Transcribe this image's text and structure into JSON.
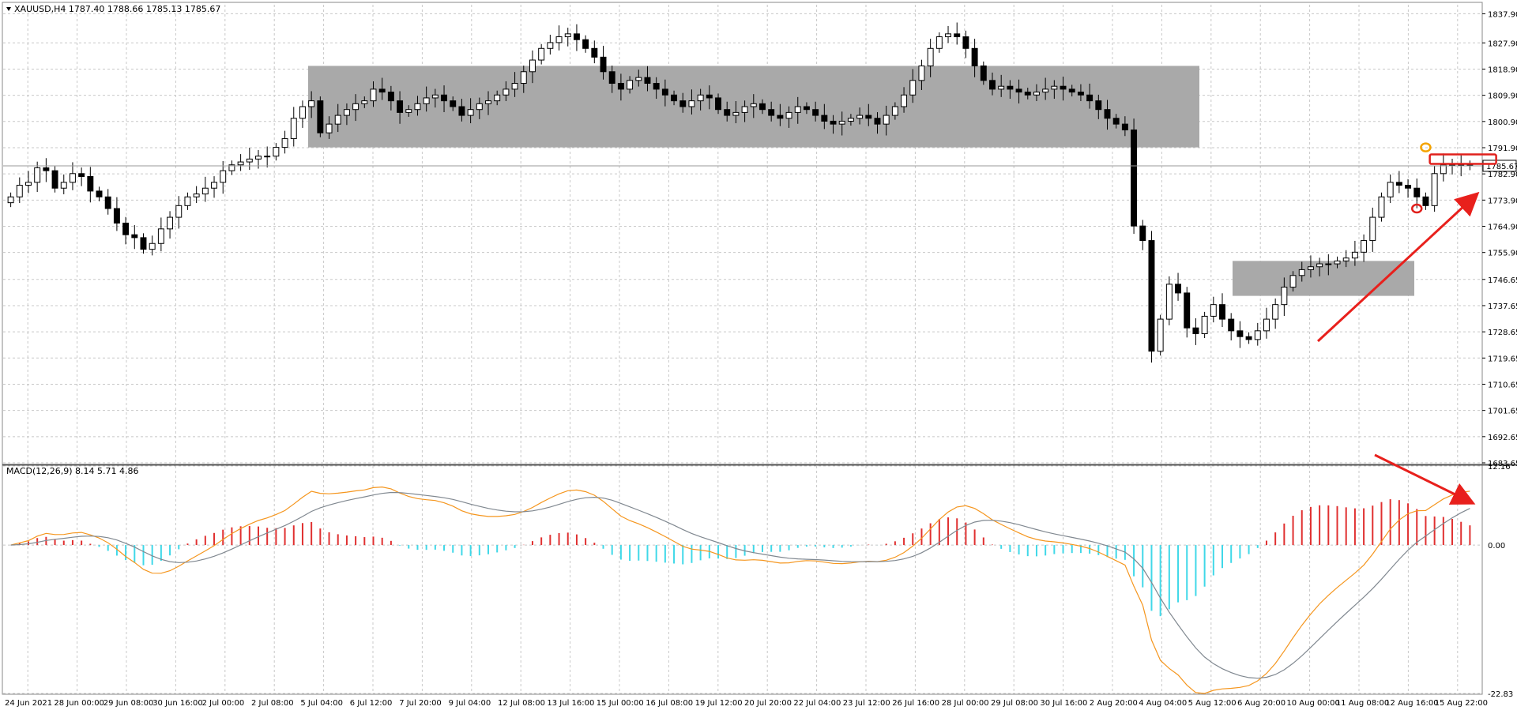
{
  "header": {
    "symbol_info": "XAUUSD,H4  1787.40 1788.66 1785.13 1785.67",
    "macd_info": "MACD(12,26,9) 8.14 5.71 4.86"
  },
  "price_axis": {
    "ticks": [
      "1837.90",
      "1827.90",
      "1818.90",
      "1809.90",
      "1800.90",
      "1791.90",
      "1782.90",
      "1773.90",
      "1764.90",
      "1755.90",
      "1746.65",
      "1737.65",
      "1728.65",
      "1719.65",
      "1710.65",
      "1701.65",
      "1692.65",
      "1683.65"
    ],
    "current_price_label": "1785.67",
    "current_price": 1785.67
  },
  "macd_axis": {
    "ticks": [
      "12.16",
      "0.00",
      "-22.83"
    ],
    "zero": 0,
    "max": 12.16,
    "min": -22.83
  },
  "time_axis": {
    "labels": [
      "24 Jun 2021",
      "28 Jun 00:00",
      "29 Jun 08:00",
      "30 Jun 16:00",
      "2 Jul 00:00",
      "2 Jul 08:00",
      "5 Jul 04:00",
      "6 Jul 12:00",
      "7 Jul 20:00",
      "9 Jul 04:00",
      "12 Jul 08:00",
      "13 Jul 16:00",
      "15 Jul 00:00",
      "16 Jul 08:00",
      "19 Jul 12:00",
      "20 Jul 20:00",
      "22 Jul 04:00",
      "23 Jul 12:00",
      "26 Jul 16:00",
      "28 Jul 00:00",
      "29 Jul 08:00",
      "30 Jul 16:00",
      "2 Aug 20:00",
      "4 Aug 04:00",
      "5 Aug 12:00",
      "6 Aug 20:00",
      "10 Aug 00:00",
      "11 Aug 08:00",
      "12 Aug 16:00",
      "15 Aug 22:00"
    ]
  },
  "colors": {
    "bull": "#ffffff",
    "bear": "#000000",
    "zone": "#a9a9a9",
    "hist_pos": "#e03030",
    "hist_neg": "#40d8e8",
    "macd_line": "#f5961e",
    "signal_line": "#808890",
    "arrow": "#e8201c",
    "marker_orange": "#f4a300",
    "marker_red": "#e0201c"
  },
  "chart_data": {
    "type": "candlestick",
    "instrument": "XAUUSD",
    "timeframe": "H4",
    "price_range": [
      1683.65,
      1841.0
    ],
    "candles_close": [
      1775,
      1779,
      1780,
      1785,
      1784,
      1778,
      1780,
      1783,
      1782,
      1777,
      1775,
      1771,
      1766,
      1762,
      1761,
      1757,
      1759,
      1764,
      1768,
      1772,
      1775,
      1776,
      1778,
      1780,
      1784,
      1786,
      1787,
      1788,
      1789,
      1789,
      1792,
      1795,
      1802,
      1806,
      1808,
      1797,
      1800,
      1803,
      1805,
      1807,
      1808,
      1812,
      1811,
      1808,
      1804,
      1805,
      1807,
      1809,
      1810,
      1808,
      1806,
      1803,
      1805,
      1807,
      1808,
      1810,
      1812,
      1814,
      1818,
      1822,
      1826,
      1828,
      1830,
      1831,
      1829,
      1826,
      1823,
      1818,
      1814,
      1812,
      1815,
      1816,
      1814,
      1812,
      1810,
      1808,
      1806,
      1808,
      1810,
      1809,
      1805,
      1803,
      1804,
      1806,
      1807,
      1805,
      1803,
      1802,
      1804,
      1806,
      1805,
      1803,
      1801,
      1800,
      1801,
      1802,
      1803,
      1802,
      1800,
      1803,
      1806,
      1810,
      1815,
      1820,
      1826,
      1830,
      1831,
      1830,
      1826,
      1820,
      1815,
      1812,
      1813,
      1812,
      1811,
      1810,
      1811,
      1812,
      1813,
      1812,
      1811,
      1810,
      1808,
      1805,
      1802,
      1800,
      1798,
      1765,
      1760,
      1722,
      1733,
      1745,
      1742,
      1730,
      1728,
      1734,
      1738,
      1733,
      1729,
      1727,
      1726,
      1729,
      1733,
      1738,
      1744,
      1748,
      1750,
      1751,
      1752,
      1752,
      1753,
      1754,
      1756,
      1760,
      1768,
      1775,
      1780,
      1779,
      1778,
      1775,
      1772,
      1783,
      1786,
      1786,
      1786,
      1785.67
    ],
    "supply_zone": [
      1792.0,
      1820.0
    ],
    "demand_zone": [
      1741.0,
      1753.0
    ],
    "macd_params": [
      12,
      26,
      9
    ],
    "macd_values": {
      "macd": 8.14,
      "signal": 5.71,
      "histogram": 4.86
    },
    "macd_range": [
      -22.83,
      12.16
    ]
  }
}
